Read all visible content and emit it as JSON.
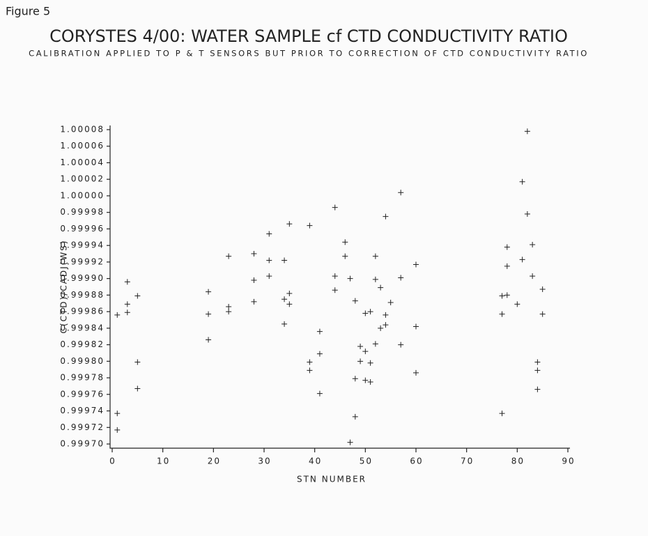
{
  "figure_label": "Figure 5",
  "chart_data": {
    "type": "scatter",
    "title": "CORYSTES 4/00: WATER SAMPLE cf CTD CONDUCTIVITY RATIO",
    "subtitle": "CALIBRATION APPLIED TO P & T SENSORS BUT PRIOR TO CORRECTION OF CTD CONDUCTIVITY RATIO",
    "x_label": "STN NUMBER",
    "y_label": "C(CTD)/CADJ(WS)",
    "color": "#222222",
    "xlim": [
      0,
      90
    ],
    "xticks": [
      0,
      10,
      20,
      30,
      40,
      50,
      60,
      70,
      80,
      90
    ],
    "ylim": [
      0.9997,
      1.00008
    ],
    "yticks": [
      {
        "value": 0.9997,
        "label": "0.99970"
      },
      0.99972,
      0.99974,
      0.99976,
      0.99978,
      {
        "value": 0.9998,
        "label": "0.99980"
      },
      0.99982,
      0.99984,
      0.99986,
      0.99988,
      {
        "value": 0.9999,
        "label": "0.99990"
      },
      0.99992,
      0.99994,
      0.99996,
      0.99998,
      {
        "value": 1,
        "label": "1.00000"
      },
      1.00002,
      1.00004,
      1.00006,
      1.00008
    ],
    "x": [
      1,
      1,
      1,
      3,
      3,
      3,
      5,
      5,
      5,
      19,
      19,
      19,
      23,
      23,
      23,
      28,
      28,
      28,
      31,
      31,
      31,
      34,
      34,
      34,
      35,
      35,
      35,
      39,
      39,
      39,
      41,
      41,
      41,
      44,
      44,
      44,
      46,
      46,
      47,
      47,
      48,
      48,
      48,
      49,
      49,
      50,
      50,
      50,
      51,
      51,
      51,
      52,
      52,
      52,
      53,
      53,
      54,
      54,
      54,
      55,
      57,
      57,
      57,
      60,
      60,
      60,
      77,
      77,
      77,
      78,
      78,
      78,
      80,
      81,
      81,
      82,
      82,
      83,
      83,
      84,
      84,
      84,
      85,
      85
    ],
    "values": [
      0.999856,
      0.999737,
      0.999717,
      0.999896,
      0.999869,
      0.999859,
      0.999879,
      0.999799,
      0.999767,
      0.999884,
      0.999857,
      0.999826,
      0.999927,
      0.999866,
      0.99986,
      0.99993,
      0.999898,
      0.999872,
      0.999954,
      0.999922,
      0.999903,
      0.999922,
      0.999875,
      0.999845,
      0.999966,
      0.999882,
      0.999869,
      0.999964,
      0.999799,
      0.999789,
      0.999836,
      0.999809,
      0.999761,
      0.999986,
      0.999903,
      0.999886,
      0.999944,
      0.999927,
      0.9999,
      0.999702,
      0.999873,
      0.999779,
      0.999733,
      0.999818,
      0.9998,
      0.999858,
      0.999812,
      0.999777,
      0.99986,
      0.999798,
      0.999775,
      0.999927,
      0.999899,
      0.999821,
      0.999889,
      0.99984,
      0.999975,
      0.999856,
      0.999844,
      0.999871,
      1.000004,
      0.999901,
      0.99982,
      0.999917,
      0.999842,
      0.999786,
      0.999879,
      0.999857,
      0.999737,
      0.999938,
      0.999915,
      0.99988,
      0.999869,
      0.999923,
      1.000017,
      0.999978,
      1.000078,
      0.999941,
      0.999903,
      0.999799,
      0.999789,
      0.999766,
      0.999887,
      0.999857
    ]
  }
}
